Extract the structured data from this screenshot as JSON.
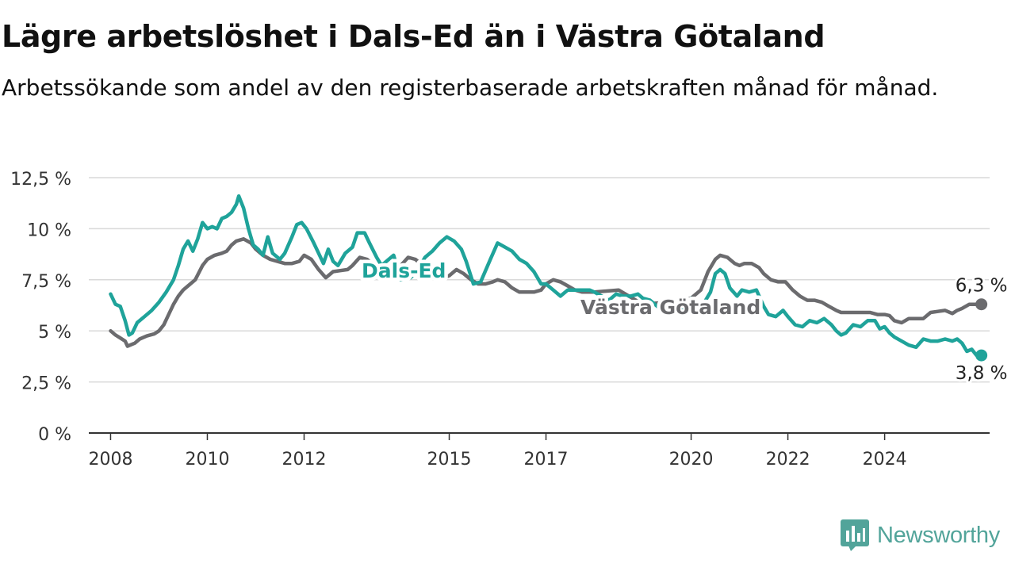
{
  "title": "Lägre arbetslöshet i Dals-Ed än i Västra Götaland",
  "subtitle": "Arbetssökande som andel av den registerbaserade arbetskraften månad för månad.",
  "brand": {
    "name": "Newsworthy",
    "icon": "newsworthy-logo-icon",
    "color": "#52a49a"
  },
  "chart_data": {
    "type": "line",
    "title": "Lägre arbetslöshet i Dals-Ed än i Västra Götaland",
    "subtitle": "Arbetssökande som andel av den registerbaserade arbetskraften månad för månad.",
    "xlabel": "",
    "ylabel": "",
    "ylim": [
      0,
      12.5
    ],
    "xlim": [
      2007.6,
      2025.6
    ],
    "grid": true,
    "legend": "inline labels",
    "y_ticks": [
      0,
      2.5,
      5,
      7.5,
      10,
      12.5
    ],
    "y_tick_labels": [
      "0 %",
      "2,5 %",
      "5 %",
      "7,5 %",
      "10 %",
      "12,5 %"
    ],
    "x_ticks": [
      2008,
      2010,
      2012,
      2015,
      2017,
      2020,
      2022,
      2024
    ],
    "x_tick_labels": [
      "2008",
      "2010",
      "2012",
      "2015",
      "2017",
      "2020",
      "2022",
      "2024"
    ],
    "series": [
      {
        "name": "Västra Götaland",
        "color": "#6b6b6e",
        "end_label": "6,3 %",
        "points": [
          [
            2008.0,
            5.0
          ],
          [
            2008.1,
            4.8
          ],
          [
            2008.2,
            4.65
          ],
          [
            2008.3,
            4.5
          ],
          [
            2008.35,
            4.25
          ],
          [
            2008.5,
            4.4
          ],
          [
            2008.6,
            4.6
          ],
          [
            2008.75,
            4.75
          ],
          [
            2008.9,
            4.85
          ],
          [
            2009.0,
            5.0
          ],
          [
            2009.1,
            5.3
          ],
          [
            2009.2,
            5.8
          ],
          [
            2009.3,
            6.3
          ],
          [
            2009.4,
            6.7
          ],
          [
            2009.5,
            7.0
          ],
          [
            2009.6,
            7.2
          ],
          [
            2009.75,
            7.5
          ],
          [
            2009.9,
            8.2
          ],
          [
            2010.0,
            8.5
          ],
          [
            2010.15,
            8.7
          ],
          [
            2010.3,
            8.8
          ],
          [
            2010.4,
            8.9
          ],
          [
            2010.5,
            9.2
          ],
          [
            2010.6,
            9.4
          ],
          [
            2010.75,
            9.5
          ],
          [
            2010.9,
            9.3
          ],
          [
            2011.0,
            9.0
          ],
          [
            2011.15,
            8.7
          ],
          [
            2011.3,
            8.5
          ],
          [
            2011.45,
            8.4
          ],
          [
            2011.6,
            8.3
          ],
          [
            2011.75,
            8.3
          ],
          [
            2011.9,
            8.4
          ],
          [
            2012.0,
            8.7
          ],
          [
            2012.15,
            8.5
          ],
          [
            2012.3,
            8.0
          ],
          [
            2012.45,
            7.6
          ],
          [
            2012.6,
            7.9
          ],
          [
            2012.75,
            7.95
          ],
          [
            2012.9,
            8.0
          ],
          [
            2013.0,
            8.2
          ],
          [
            2013.15,
            8.6
          ],
          [
            2013.3,
            8.5
          ],
          [
            2013.45,
            8.2
          ],
          [
            2013.6,
            7.8
          ],
          [
            2013.75,
            7.7
          ],
          [
            2013.9,
            7.9
          ],
          [
            2014.0,
            8.2
          ],
          [
            2014.15,
            8.6
          ],
          [
            2014.3,
            8.5
          ],
          [
            2014.45,
            8.2
          ],
          [
            2014.6,
            7.9
          ],
          [
            2014.75,
            7.7
          ],
          [
            2014.9,
            7.6
          ],
          [
            2015.0,
            7.7
          ],
          [
            2015.15,
            8.0
          ],
          [
            2015.3,
            7.8
          ],
          [
            2015.45,
            7.5
          ],
          [
            2015.6,
            7.3
          ],
          [
            2015.75,
            7.3
          ],
          [
            2015.9,
            7.4
          ],
          [
            2016.0,
            7.5
          ],
          [
            2016.15,
            7.4
          ],
          [
            2016.3,
            7.1
          ],
          [
            2016.45,
            6.9
          ],
          [
            2016.6,
            6.9
          ],
          [
            2016.75,
            6.9
          ],
          [
            2016.9,
            7.0
          ],
          [
            2017.0,
            7.3
          ],
          [
            2017.15,
            7.5
          ],
          [
            2017.3,
            7.4
          ],
          [
            2017.45,
            7.2
          ],
          [
            2017.6,
            7.0
          ],
          [
            2017.75,
            6.9
          ],
          [
            2017.9,
            6.9
          ],
          [
            2018.0,
            6.9
          ],
          [
            2018.5,
            7.0
          ],
          [
            2019.0,
            6.3
          ],
          [
            2019.5,
            6.4
          ],
          [
            2020.0,
            6.6
          ],
          [
            2020.2,
            7.0
          ],
          [
            2020.35,
            7.9
          ],
          [
            2020.5,
            8.5
          ],
          [
            2020.6,
            8.7
          ],
          [
            2020.75,
            8.6
          ],
          [
            2020.9,
            8.3
          ],
          [
            2021.0,
            8.2
          ],
          [
            2021.1,
            8.3
          ],
          [
            2021.25,
            8.3
          ],
          [
            2021.4,
            8.1
          ],
          [
            2021.5,
            7.8
          ],
          [
            2021.65,
            7.5
          ],
          [
            2021.8,
            7.4
          ],
          [
            2021.95,
            7.4
          ],
          [
            2022.1,
            7.0
          ],
          [
            2022.25,
            6.7
          ],
          [
            2022.4,
            6.5
          ],
          [
            2022.55,
            6.5
          ],
          [
            2022.7,
            6.4
          ],
          [
            2022.85,
            6.2
          ],
          [
            2023.0,
            6.0
          ],
          [
            2023.1,
            5.9
          ],
          [
            2023.25,
            5.9
          ],
          [
            2023.4,
            5.9
          ],
          [
            2023.55,
            5.9
          ],
          [
            2023.7,
            5.9
          ],
          [
            2023.85,
            5.8
          ],
          [
            2024.0,
            5.8
          ],
          [
            2024.1,
            5.75
          ],
          [
            2024.2,
            5.5
          ],
          [
            2024.35,
            5.4
          ],
          [
            2024.5,
            5.6
          ],
          [
            2024.65,
            5.6
          ],
          [
            2024.8,
            5.6
          ],
          [
            2024.95,
            5.9
          ],
          [
            2025.1,
            5.95
          ],
          [
            2025.25,
            6.0
          ],
          [
            2025.4,
            5.85
          ],
          [
            2025.5,
            6.0
          ],
          [
            2025.6,
            6.1
          ],
          [
            2025.75,
            6.3
          ],
          [
            2025.9,
            6.3
          ],
          [
            2026.0,
            6.3
          ]
        ]
      },
      {
        "name": "Dals-Ed",
        "color": "#1fa39a",
        "end_label": "3,8 %",
        "points": [
          [
            2008.0,
            6.8
          ],
          [
            2008.1,
            6.3
          ],
          [
            2008.2,
            6.2
          ],
          [
            2008.3,
            5.5
          ],
          [
            2008.38,
            4.8
          ],
          [
            2008.45,
            4.9
          ],
          [
            2008.55,
            5.4
          ],
          [
            2008.7,
            5.7
          ],
          [
            2008.85,
            6.0
          ],
          [
            2009.0,
            6.4
          ],
          [
            2009.15,
            6.9
          ],
          [
            2009.3,
            7.5
          ],
          [
            2009.4,
            8.2
          ],
          [
            2009.5,
            9.0
          ],
          [
            2009.6,
            9.4
          ],
          [
            2009.7,
            8.9
          ],
          [
            2009.8,
            9.5
          ],
          [
            2009.9,
            10.3
          ],
          [
            2010.0,
            10.0
          ],
          [
            2010.1,
            10.1
          ],
          [
            2010.2,
            10.0
          ],
          [
            2010.3,
            10.5
          ],
          [
            2010.4,
            10.6
          ],
          [
            2010.5,
            10.8
          ],
          [
            2010.6,
            11.2
          ],
          [
            2010.65,
            11.6
          ],
          [
            2010.75,
            11.0
          ],
          [
            2010.85,
            10.0
          ],
          [
            2010.95,
            9.2
          ],
          [
            2011.05,
            9.0
          ],
          [
            2011.15,
            8.7
          ],
          [
            2011.25,
            9.6
          ],
          [
            2011.35,
            8.8
          ],
          [
            2011.5,
            8.5
          ],
          [
            2011.6,
            8.8
          ],
          [
            2011.75,
            9.6
          ],
          [
            2011.85,
            10.2
          ],
          [
            2011.95,
            10.3
          ],
          [
            2012.05,
            10.0
          ],
          [
            2012.2,
            9.3
          ],
          [
            2012.3,
            8.8
          ],
          [
            2012.4,
            8.3
          ],
          [
            2012.5,
            9.0
          ],
          [
            2012.6,
            8.4
          ],
          [
            2012.7,
            8.2
          ],
          [
            2012.85,
            8.8
          ],
          [
            2013.0,
            9.1
          ],
          [
            2013.1,
            9.8
          ],
          [
            2013.25,
            9.8
          ],
          [
            2013.35,
            9.3
          ],
          [
            2013.5,
            8.6
          ],
          [
            2013.6,
            8.2
          ],
          [
            2013.75,
            8.5
          ],
          [
            2013.85,
            8.7
          ],
          [
            2014.0,
            7.5
          ],
          [
            2014.2,
            7.6
          ],
          [
            2014.35,
            8.0
          ],
          [
            2014.5,
            8.6
          ],
          [
            2014.65,
            8.9
          ],
          [
            2014.8,
            9.3
          ],
          [
            2014.95,
            9.6
          ],
          [
            2015.1,
            9.4
          ],
          [
            2015.25,
            9.0
          ],
          [
            2015.35,
            8.4
          ],
          [
            2015.5,
            7.3
          ],
          [
            2015.65,
            7.4
          ],
          [
            2015.85,
            8.5
          ],
          [
            2016.0,
            9.3
          ],
          [
            2016.15,
            9.1
          ],
          [
            2016.3,
            8.9
          ],
          [
            2016.45,
            8.5
          ],
          [
            2016.6,
            8.3
          ],
          [
            2016.75,
            7.9
          ],
          [
            2016.9,
            7.3
          ],
          [
            2017.0,
            7.3
          ],
          [
            2017.15,
            7.0
          ],
          [
            2017.3,
            6.7
          ],
          [
            2017.45,
            7.0
          ],
          [
            2017.6,
            7.0
          ],
          [
            2017.75,
            7.0
          ],
          [
            2017.9,
            7.0
          ],
          [
            2018.0,
            6.9
          ],
          [
            2018.15,
            6.7
          ],
          [
            2018.3,
            6.5
          ],
          [
            2018.45,
            6.8
          ],
          [
            2018.6,
            6.7
          ],
          [
            2018.75,
            6.7
          ],
          [
            2018.9,
            6.8
          ],
          [
            2019.0,
            6.6
          ],
          [
            2019.15,
            6.5
          ],
          [
            2019.3,
            6.2
          ],
          [
            2019.45,
            5.9
          ],
          [
            2019.6,
            6.1
          ],
          [
            2019.75,
            6.0
          ],
          [
            2019.9,
            6.0
          ],
          [
            2020.0,
            6.6
          ],
          [
            2020.1,
            6.4
          ],
          [
            2020.25,
            6.3
          ],
          [
            2020.4,
            6.9
          ],
          [
            2020.5,
            7.8
          ],
          [
            2020.6,
            8.0
          ],
          [
            2020.7,
            7.8
          ],
          [
            2020.8,
            7.1
          ],
          [
            2020.95,
            6.7
          ],
          [
            2021.05,
            7.0
          ],
          [
            2021.2,
            6.9
          ],
          [
            2021.35,
            7.0
          ],
          [
            2021.5,
            6.2
          ],
          [
            2021.6,
            5.8
          ],
          [
            2021.75,
            5.7
          ],
          [
            2021.9,
            6.0
          ],
          [
            2022.0,
            5.7
          ],
          [
            2022.15,
            5.3
          ],
          [
            2022.3,
            5.2
          ],
          [
            2022.45,
            5.5
          ],
          [
            2022.6,
            5.4
          ],
          [
            2022.75,
            5.6
          ],
          [
            2022.9,
            5.3
          ],
          [
            2023.0,
            5.0
          ],
          [
            2023.1,
            4.8
          ],
          [
            2023.2,
            4.9
          ],
          [
            2023.35,
            5.3
          ],
          [
            2023.5,
            5.2
          ],
          [
            2023.65,
            5.5
          ],
          [
            2023.8,
            5.5
          ],
          [
            2023.9,
            5.1
          ],
          [
            2024.0,
            5.2
          ],
          [
            2024.1,
            4.9
          ],
          [
            2024.2,
            4.7
          ],
          [
            2024.35,
            4.5
          ],
          [
            2024.5,
            4.3
          ],
          [
            2024.65,
            4.2
          ],
          [
            2024.8,
            4.6
          ],
          [
            2024.95,
            4.5
          ],
          [
            2025.1,
            4.5
          ],
          [
            2025.25,
            4.6
          ],
          [
            2025.4,
            4.5
          ],
          [
            2025.5,
            4.6
          ],
          [
            2025.6,
            4.4
          ],
          [
            2025.7,
            4.0
          ],
          [
            2025.8,
            4.1
          ],
          [
            2025.9,
            3.8
          ],
          [
            2026.0,
            3.8
          ]
        ]
      }
    ]
  }
}
